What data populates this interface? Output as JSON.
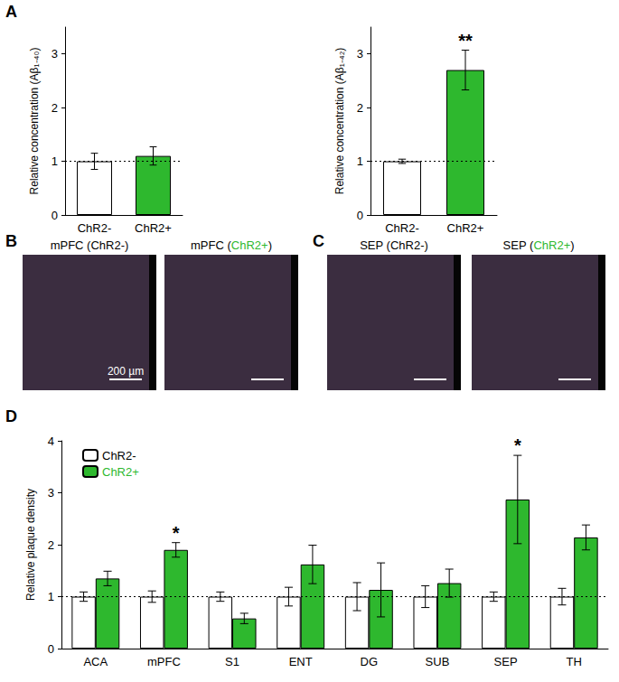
{
  "chart_data": [
    {
      "type": "bar",
      "panel": "A",
      "y_label": "Relative concentration (Aβ₁₋₄₀)",
      "categories": [
        "ChR2-",
        "ChR2+"
      ],
      "values": [
        1.0,
        1.1
      ],
      "errors": [
        0.15,
        0.17
      ],
      "colors": [
        "#ffffff",
        "#2eb82e"
      ],
      "reference_line": 1,
      "ylim": [
        0,
        3.5
      ],
      "yticks": [
        0,
        1,
        2,
        3
      ],
      "grid": false
    },
    {
      "type": "bar",
      "y_label": "Relative concentration (Aβ₁₋₄₂)",
      "categories": [
        "ChR2-",
        "ChR2+"
      ],
      "values": [
        1.0,
        2.7
      ],
      "errors": [
        0.04,
        0.37
      ],
      "colors": [
        "#ffffff",
        "#2eb82e"
      ],
      "reference_line": 1,
      "annotations": [
        {
          "category": "ChR2+",
          "text": "**"
        }
      ],
      "ylim": [
        0,
        3.5
      ],
      "yticks": [
        0,
        1,
        2,
        3
      ],
      "grid": false
    },
    {
      "type": "bar",
      "panel": "D",
      "y_label": "Relative plaque density",
      "categories": [
        "ACA",
        "mPFC",
        "S1",
        "ENT",
        "DG",
        "SUB",
        "SEP",
        "TH"
      ],
      "series": [
        {
          "name": "ChR2-",
          "color": "#ffffff",
          "text_color": "#000000",
          "values": [
            1,
            1,
            1,
            1,
            1,
            1,
            1,
            1
          ],
          "errors": [
            0.09,
            0.11,
            0.09,
            0.18,
            0.27,
            0.21,
            0.09,
            0.16
          ]
        },
        {
          "name": "ChR2+",
          "color": "#2eb82e",
          "text_color": "#2eb82e",
          "values": [
            1.35,
            1.9,
            0.58,
            1.62,
            1.13,
            1.26,
            2.87,
            2.14
          ],
          "errors": [
            0.14,
            0.14,
            0.1,
            0.37,
            0.52,
            0.27,
            0.85,
            0.24
          ],
          "annotations": [
            {
              "category": "mPFC",
              "text": "*"
            },
            {
              "category": "SEP",
              "text": "*"
            }
          ]
        }
      ],
      "reference_line": 1,
      "legend": "upper left",
      "ylim": [
        0,
        4
      ],
      "yticks": [
        0,
        1,
        2,
        3,
        4
      ],
      "grid": false
    }
  ],
  "micrographs": [
    {
      "panel": "B",
      "highlight": {
        "text": "ChR2+",
        "color": "#2eb82e"
      },
      "images": [
        {
          "title": "mPFC (ChR2-)",
          "scale_bar": true,
          "scale_bar_label": "200 µm"
        },
        {
          "title": "mPFC (ChR2+)",
          "scale_bar": true
        }
      ]
    },
    {
      "panel": "C",
      "highlight": {
        "text": "ChR2+",
        "color": "#2eb82e"
      },
      "images": [
        {
          "title": "SEP (ChR2-)",
          "scale_bar": true
        },
        {
          "title": "SEP (ChR2+)",
          "scale_bar": true
        }
      ]
    }
  ]
}
